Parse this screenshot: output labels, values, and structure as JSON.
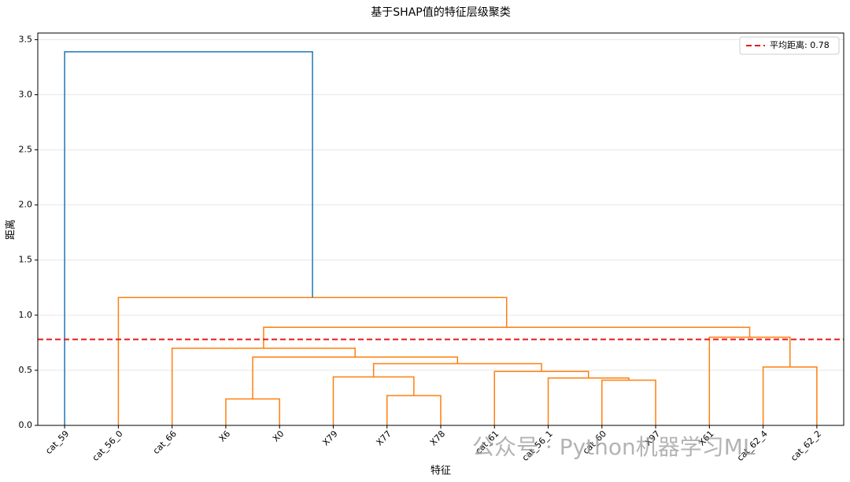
{
  "chart_data": {
    "type": "dendrogram",
    "title": "基于SHAP值的特征层级聚类",
    "xlabel": "特征",
    "ylabel": "距离",
    "leaves": [
      "cat_59",
      "cat_56_0",
      "cat_66",
      "X6",
      "X0",
      "X79",
      "X77",
      "X78",
      "cat_61",
      "cat_56_1",
      "cat_60",
      "X97",
      "X61",
      "cat_62_4",
      "cat_62_2"
    ],
    "links": [
      {
        "left": 3,
        "right": 4,
        "height": 0.24,
        "color": "#ff7f0e"
      },
      {
        "left": 6,
        "right": 7,
        "height": 0.27,
        "color": "#ff7f0e"
      },
      {
        "left": 10,
        "right": 11,
        "height": 0.41,
        "color": "#ff7f0e"
      },
      {
        "left": 9,
        "right": 17,
        "height": 0.43,
        "color": "#ff7f0e"
      },
      {
        "left": 5,
        "right": 16,
        "height": 0.44,
        "color": "#ff7f0e"
      },
      {
        "left": 8,
        "right": 18,
        "height": 0.49,
        "color": "#ff7f0e"
      },
      {
        "left": 13,
        "right": 14,
        "height": 0.53,
        "color": "#ff7f0e"
      },
      {
        "left": 19,
        "right": 20,
        "height": 0.56,
        "color": "#ff7f0e"
      },
      {
        "left": 15,
        "right": 22,
        "height": 0.62,
        "color": "#ff7f0e"
      },
      {
        "left": 2,
        "right": 23,
        "height": 0.7,
        "color": "#ff7f0e"
      },
      {
        "left": 12,
        "right": 21,
        "height": 0.8,
        "color": "#ff7f0e"
      },
      {
        "left": 24,
        "right": 25,
        "height": 0.89,
        "color": "#ff7f0e"
      },
      {
        "left": 1,
        "right": 26,
        "height": 1.16,
        "color": "#ff7f0e"
      },
      {
        "left": 0,
        "right": 27,
        "height": 3.39,
        "color": "#1f77b4"
      }
    ],
    "threshold": {
      "value": 0.78,
      "label": "平均距离: 0.78",
      "color": "#e41a1c"
    },
    "ylim": [
      0,
      3.56
    ],
    "yticks": [
      {
        "value": 0,
        "label": "0.0"
      },
      0.5,
      {
        "value": 1,
        "label": "1.0"
      },
      1.5,
      {
        "value": 2,
        "label": "2.0"
      },
      2.5,
      {
        "value": 3,
        "label": "3.0"
      },
      3.5
    ],
    "grid": true,
    "legend": "upper right",
    "watermark": "公众号 · Python机器学习ML"
  }
}
